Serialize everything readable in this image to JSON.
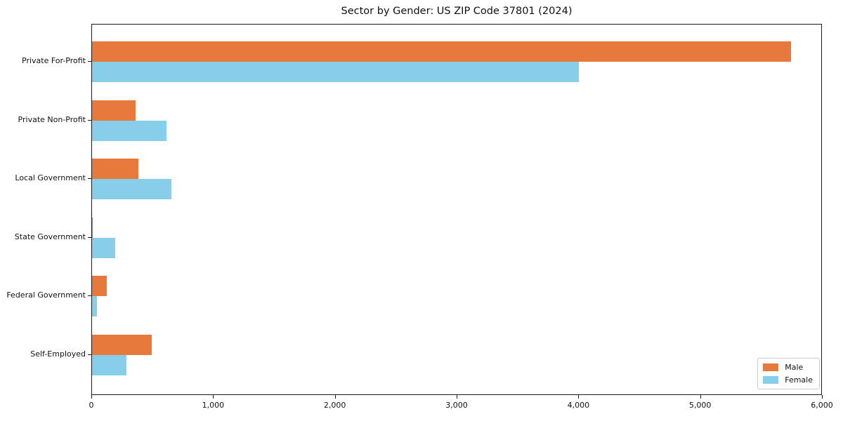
{
  "title": "Sector by Gender: US ZIP Code 37801 (2024)",
  "chart_data": {
    "type": "bar",
    "orientation": "horizontal",
    "title": "Sector by Gender: US ZIP Code 37801 (2024)",
    "categories": [
      "Private For-Profit",
      "Private Non-Profit",
      "Local Government",
      "State Government",
      "Federal Government",
      "Self-Employed"
    ],
    "series": [
      {
        "name": "Male",
        "color": "#e8793d",
        "values": [
          5740,
          360,
          380,
          6,
          120,
          490
        ]
      },
      {
        "name": "Female",
        "color": "#87ceeb",
        "values": [
          4000,
          610,
          650,
          190,
          40,
          280
        ]
      }
    ],
    "xlabel": "",
    "ylabel": "",
    "xlim": [
      0,
      6000
    ],
    "xticks": [
      0,
      1000,
      2000,
      3000,
      4000,
      5000,
      6000
    ],
    "xtick_labels": [
      "0",
      "1,000",
      "2,000",
      "3,000",
      "4,000",
      "5,000",
      "6,000"
    ],
    "grid": false,
    "legend_position": "lower right",
    "plot_border_color": "#1a1a1a",
    "background_color": "#ffffff"
  }
}
